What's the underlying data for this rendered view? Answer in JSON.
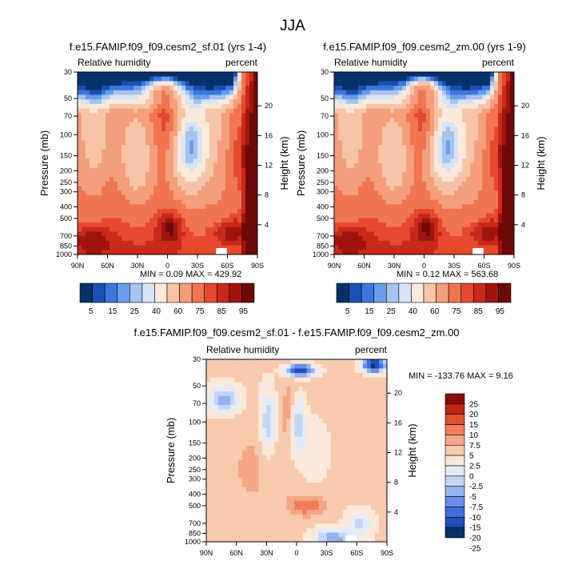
{
  "page": {
    "title": "JJA"
  },
  "palette": {
    "abs": [
      "#08306b",
      "#1a50b4",
      "#3a78dc",
      "#6a9ee8",
      "#a6c4ee",
      "#d6e4f6",
      "#fbe9dc",
      "#f8c4a8",
      "#f59e7c",
      "#f07650",
      "#e54a2e",
      "#c9281a",
      "#a01410",
      "#6e0a06"
    ],
    "diff": [
      "#08306b",
      "#1f4fb8",
      "#3c6ee0",
      "#6690e8",
      "#94b2ee",
      "#c4d6f4",
      "#e4ecf8",
      "#fbe9dc",
      "#f8caae",
      "#f5a684",
      "#f07c5a",
      "#e0502e",
      "#c02612",
      "#8a0c04"
    ]
  },
  "chart_data": [
    {
      "id": "left",
      "type": "heatmap",
      "title": "f.e15.FAMIP.f09_f09.cesm2_sf.01 (yrs 1-4)",
      "left_label": "Relative humidity",
      "right_label": "percent",
      "ylabel": "Pressure (mb)",
      "ylabel_right": "Height (km)",
      "x_ticks": [
        "90N",
        "60N",
        "30N",
        "0",
        "30S",
        "60S",
        "90S"
      ],
      "y_ticks": [
        "30",
        "50",
        "70",
        "100",
        "150",
        "200",
        "250",
        "300",
        "400",
        "500",
        "700",
        "850",
        "1000"
      ],
      "y_tick_values": [
        30,
        50,
        70,
        100,
        150,
        200,
        250,
        300,
        400,
        500,
        700,
        850,
        1000
      ],
      "height_ticks": [
        "4",
        "8",
        "12",
        "16",
        "20"
      ],
      "height_values": [
        4,
        8,
        12,
        16,
        20
      ],
      "min_label": "MIN =   0.09  MAX = 429.92",
      "colorbar_labels": [
        "5",
        "15",
        "25",
        "40",
        "60",
        "75",
        "85",
        "95"
      ],
      "variant": "a",
      "mode": "abs"
    },
    {
      "id": "right",
      "type": "heatmap",
      "title": "f.e15.FAMIP.f09_f09.cesm2_zm.00 (yrs 1-9)",
      "left_label": "Relative humidity",
      "right_label": "percent",
      "ylabel": "Pressure (mb)",
      "ylabel_right": "Height (km)",
      "x_ticks": [
        "90N",
        "60N",
        "30N",
        "0",
        "30S",
        "60S",
        "90S"
      ],
      "y_ticks": [
        "30",
        "50",
        "70",
        "100",
        "150",
        "200",
        "250",
        "300",
        "400",
        "500",
        "700",
        "850",
        "1000"
      ],
      "y_tick_values": [
        30,
        50,
        70,
        100,
        150,
        200,
        250,
        300,
        400,
        500,
        700,
        850,
        1000
      ],
      "height_ticks": [
        "4",
        "8",
        "12",
        "16",
        "20"
      ],
      "height_values": [
        4,
        8,
        12,
        16,
        20
      ],
      "min_label": "MIN =   0.12  MAX = 563.68",
      "colorbar_labels": [
        "5",
        "15",
        "25",
        "40",
        "60",
        "75",
        "85",
        "95"
      ],
      "variant": "b",
      "mode": "abs"
    },
    {
      "id": "diff",
      "type": "heatmap",
      "title": "f.e15.FAMIP.f09_f09.cesm2_sf.01 - f.e15.FAMIP.f09_f09.cesm2_zm.00",
      "left_label": "Relative humidity",
      "right_label": "percent",
      "ylabel": "Pressure (mb)",
      "ylabel_right": "Height (km)",
      "x_ticks": [
        "90N",
        "60N",
        "30N",
        "0",
        "30S",
        "60S",
        "90S"
      ],
      "y_ticks": [
        "30",
        "50",
        "70",
        "100",
        "150",
        "200",
        "250",
        "300",
        "400",
        "500",
        "700",
        "850",
        "1000"
      ],
      "y_tick_values": [
        30,
        50,
        70,
        100,
        150,
        200,
        250,
        300,
        400,
        500,
        700,
        850,
        1000
      ],
      "height_ticks": [
        "4",
        "8",
        "12",
        "16",
        "20"
      ],
      "height_values": [
        4,
        8,
        12,
        16,
        20
      ],
      "min_label": "MIN = -133.76  MAX =   9.16",
      "colorbar_labels": [
        "25",
        "20",
        "15",
        "10",
        "7.5",
        "5",
        "2.5",
        "0",
        "-2.5",
        "-5",
        "-7.5",
        "-10",
        "-15",
        "-20",
        "-25"
      ],
      "mode": "diff"
    }
  ]
}
